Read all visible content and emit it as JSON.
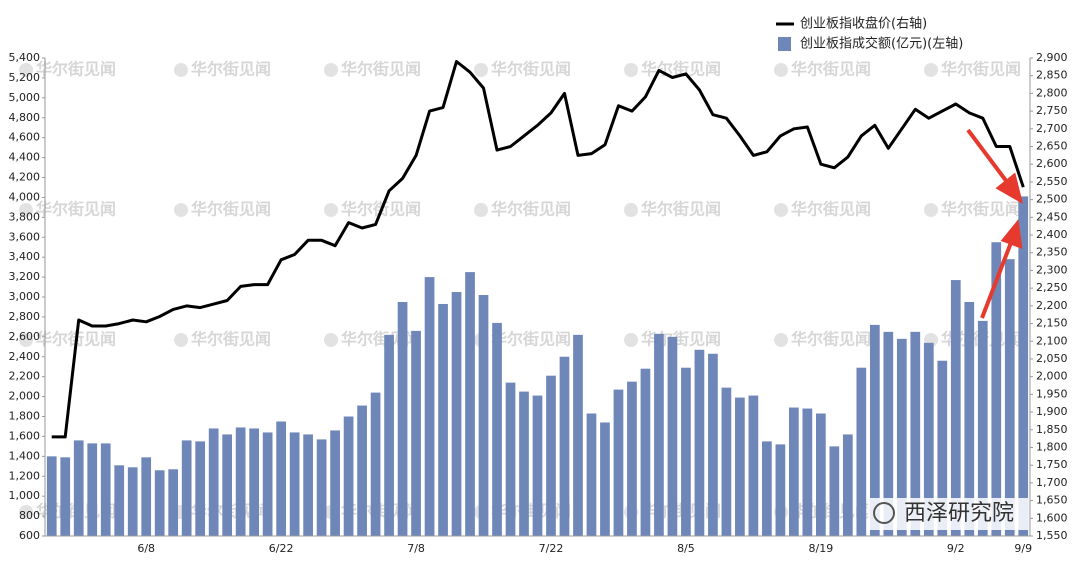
{
  "chart_data": {
    "type": "bar",
    "legend_position": "top-right",
    "watermark": "华尔街见闻",
    "badge": "西泽研究院",
    "categories": [
      null,
      null,
      null,
      null,
      null,
      null,
      null,
      "6/8",
      null,
      null,
      null,
      null,
      null,
      null,
      null,
      null,
      null,
      "6/22",
      null,
      null,
      null,
      null,
      null,
      null,
      null,
      null,
      null,
      "7/8",
      null,
      null,
      null,
      null,
      null,
      null,
      null,
      null,
      null,
      "7/22",
      null,
      null,
      null,
      null,
      null,
      null,
      null,
      null,
      null,
      "8/5",
      null,
      null,
      null,
      null,
      null,
      null,
      null,
      null,
      null,
      "8/19",
      null,
      null,
      null,
      null,
      null,
      null,
      null,
      null,
      null,
      "9/2",
      null,
      null,
      null,
      null,
      "9/9"
    ],
    "series": [
      {
        "name": "创业板指成交额(亿元)(左轴)",
        "type": "bar",
        "color": "#6f87b8",
        "values": [
          1400,
          1390,
          1560,
          1530,
          1530,
          1310,
          1290,
          1390,
          1260,
          1270,
          1560,
          1550,
          1680,
          1620,
          1690,
          1680,
          1640,
          1750,
          1640,
          1620,
          1570,
          1660,
          1800,
          1910,
          2040,
          2620,
          2950,
          2660,
          3200,
          2930,
          3050,
          3250,
          3020,
          2740,
          2140,
          2050,
          2010,
          2210,
          2400,
          2620,
          1830,
          1740,
          2070,
          2150,
          2280,
          2630,
          2600,
          2290,
          2470,
          2430,
          2090,
          1990,
          2010,
          1550,
          1520,
          1890,
          1880,
          1830,
          1500,
          1620,
          2290,
          2720,
          2650,
          2580,
          2650,
          2540,
          2360,
          3170,
          2950,
          2760,
          3550,
          3380,
          4010
        ]
      },
      {
        "name": "创业板指收盘价(右轴)",
        "type": "line",
        "axis": "y2",
        "color": "#000000",
        "values": [
          1830,
          1830,
          2160,
          2143,
          2143,
          2150,
          2160,
          2155,
          2170,
          2190,
          2200,
          2195,
          2205,
          2215,
          2255,
          2260,
          2260,
          2330,
          2345,
          2385,
          2385,
          2370,
          2435,
          2420,
          2430,
          2525,
          2560,
          2625,
          2750,
          2760,
          2890,
          2860,
          2815,
          2640,
          2650,
          2680,
          2710,
          2745,
          2800,
          2625,
          2630,
          2655,
          2765,
          2750,
          2790,
          2865,
          2845,
          2855,
          2810,
          2740,
          2730,
          2680,
          2625,
          2635,
          2680,
          2700,
          2705,
          2600,
          2590,
          2620,
          2680,
          2710,
          2645,
          2700,
          2755,
          2730,
          2750,
          2770,
          2745,
          2730,
          2650,
          2650,
          2535
        ]
      }
    ],
    "ylim": [
      600,
      5400
    ],
    "yticks": [
      600,
      800,
      {
        "value": 1000,
        "label": "1,000"
      },
      {
        "value": 1200,
        "label": "1,200"
      },
      {
        "value": 1400,
        "label": "1,400"
      },
      {
        "value": 1600,
        "label": "1,600"
      },
      {
        "value": 1800,
        "label": "1,800"
      },
      {
        "value": 2000,
        "label": "2,000"
      },
      {
        "value": 2200,
        "label": "2,200"
      },
      {
        "value": 2400,
        "label": "2,400"
      },
      {
        "value": 2600,
        "label": "2,600"
      },
      {
        "value": 2800,
        "label": "2,800"
      },
      {
        "value": 3000,
        "label": "3,000"
      },
      {
        "value": 3200,
        "label": "3,200"
      },
      {
        "value": 3400,
        "label": "3,400"
      },
      {
        "value": 3600,
        "label": "3,600"
      },
      {
        "value": 3800,
        "label": "3,800"
      },
      {
        "value": 4000,
        "label": "4,000"
      },
      {
        "value": 4200,
        "label": "4,200"
      },
      {
        "value": 4400,
        "label": "4,400"
      },
      {
        "value": 4600,
        "label": "4,600"
      },
      {
        "value": 4800,
        "label": "4,800"
      },
      {
        "value": 5000,
        "label": "5,000"
      },
      {
        "value": 5200,
        "label": "5,200"
      },
      {
        "value": 5400,
        "label": "5,400"
      }
    ],
    "y2lim": [
      1550,
      2900
    ],
    "y2ticks": [
      {
        "value": 1550,
        "label": "1,550"
      },
      {
        "value": 1600,
        "label": "1,600"
      },
      {
        "value": 1650,
        "label": "1,650"
      },
      {
        "value": 1700,
        "label": "1,700"
      },
      {
        "value": 1750,
        "label": "1,750"
      },
      {
        "value": 1800,
        "label": "1,800"
      },
      {
        "value": 1850,
        "label": "1,850"
      },
      {
        "value": 1900,
        "label": "1,900"
      },
      {
        "value": 1950,
        "label": "1,950"
      },
      {
        "value": 2000,
        "label": "2,000"
      },
      {
        "value": 2050,
        "label": "2,050"
      },
      {
        "value": 2100,
        "label": "2,100"
      },
      {
        "value": 2150,
        "label": "2,150"
      },
      {
        "value": 2200,
        "label": "2,200"
      },
      {
        "value": 2250,
        "label": "2,250"
      },
      {
        "value": 2300,
        "label": "2,300"
      },
      {
        "value": 2350,
        "label": "2,350"
      },
      {
        "value": 2400,
        "label": "2,400"
      },
      {
        "value": 2450,
        "label": "2,450"
      },
      {
        "value": 2500,
        "label": "2,500"
      },
      {
        "value": 2550,
        "label": "2,550"
      },
      {
        "value": 2600,
        "label": "2,600"
      },
      {
        "value": 2650,
        "label": "2,650"
      },
      {
        "value": 2700,
        "label": "2,700"
      },
      {
        "value": 2750,
        "label": "2,750"
      },
      {
        "value": 2800,
        "label": "2,800"
      },
      {
        "value": 2850,
        "label": "2,850"
      },
      {
        "value": 2900,
        "label": "2,900"
      }
    ],
    "grid": false
  }
}
